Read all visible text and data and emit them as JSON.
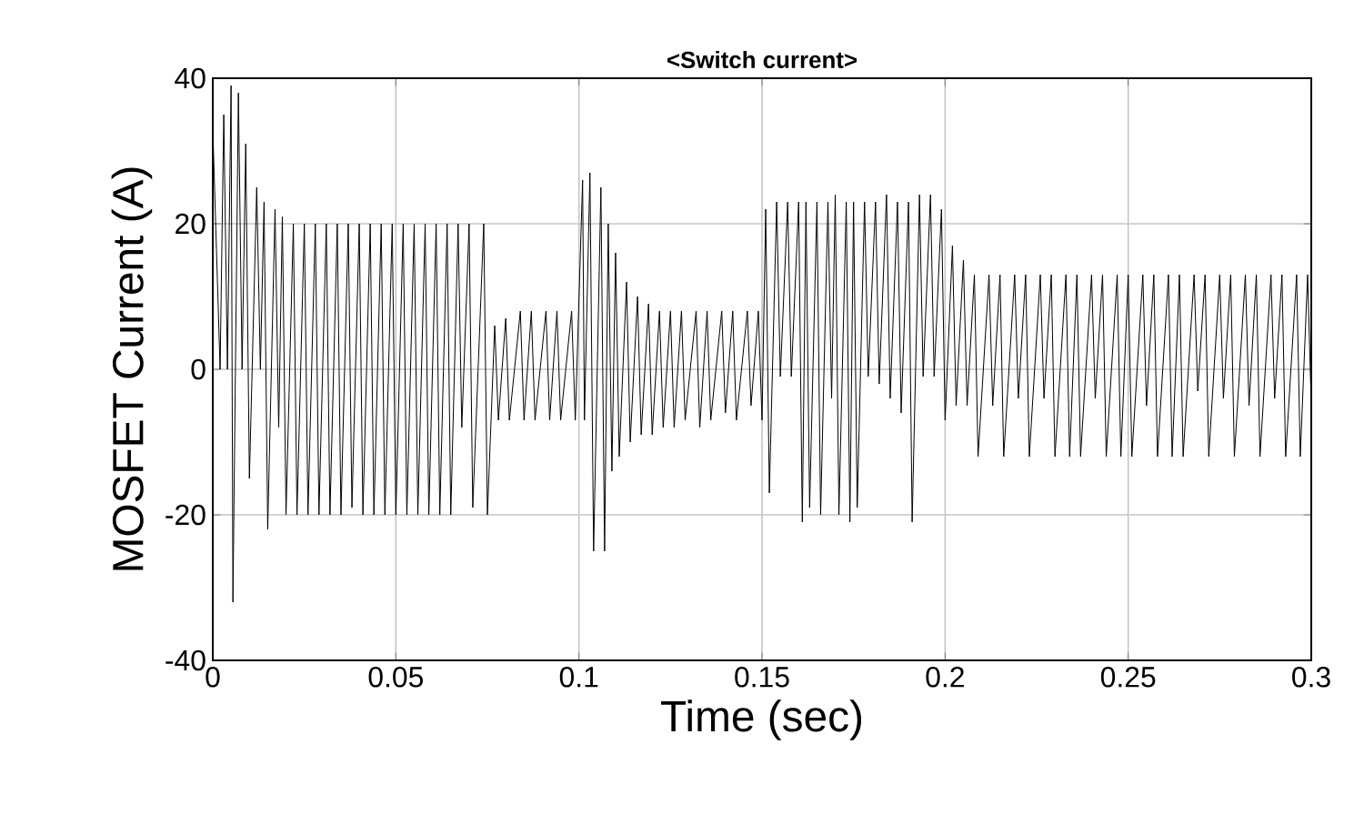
{
  "chart_data": {
    "type": "line",
    "title": "<Switch current>",
    "xlabel": "Time (sec)",
    "ylabel": "MOSFET Current (A)",
    "xlim": [
      0,
      0.3
    ],
    "ylim": [
      -40,
      40
    ],
    "xticks": [
      0,
      0.05,
      0.1,
      0.15,
      0.2,
      0.25,
      0.3
    ],
    "yticks": [
      -40,
      -20,
      0,
      20,
      40
    ],
    "grid": true,
    "series": [
      {
        "color": "#000000",
        "x": [
          0.0,
          0.002,
          0.003,
          0.004,
          0.005,
          0.0055,
          0.007,
          0.008,
          0.009,
          0.01,
          0.012,
          0.013,
          0.014,
          0.015,
          0.017,
          0.018,
          0.019,
          0.02,
          0.022,
          0.023,
          0.025,
          0.026,
          0.028,
          0.029,
          0.031,
          0.032,
          0.034,
          0.035,
          0.037,
          0.038,
          0.04,
          0.041,
          0.043,
          0.044,
          0.046,
          0.047,
          0.049,
          0.05,
          0.052,
          0.053,
          0.055,
          0.056,
          0.058,
          0.059,
          0.061,
          0.062,
          0.064,
          0.065,
          0.067,
          0.068,
          0.07,
          0.071,
          0.074,
          0.075,
          0.077,
          0.078,
          0.08,
          0.081,
          0.084,
          0.085,
          0.087,
          0.088,
          0.091,
          0.092,
          0.094,
          0.095,
          0.098,
          0.099,
          0.101,
          0.1015,
          0.103,
          0.104,
          0.106,
          0.107,
          0.108,
          0.109,
          0.11,
          0.111,
          0.113,
          0.114,
          0.116,
          0.117,
          0.119,
          0.12,
          0.122,
          0.123,
          0.125,
          0.126,
          0.128,
          0.129,
          0.132,
          0.133,
          0.135,
          0.136,
          0.139,
          0.14,
          0.142,
          0.143,
          0.146,
          0.147,
          0.149,
          0.15,
          0.151,
          0.152,
          0.154,
          0.155,
          0.157,
          0.158,
          0.16,
          0.161,
          0.162,
          0.163,
          0.165,
          0.166,
          0.168,
          0.169,
          0.17,
          0.171,
          0.173,
          0.174,
          0.175,
          0.176,
          0.178,
          0.179,
          0.181,
          0.182,
          0.184,
          0.185,
          0.187,
          0.188,
          0.19,
          0.191,
          0.193,
          0.194,
          0.196,
          0.197,
          0.199,
          0.2,
          0.202,
          0.203,
          0.205,
          0.206,
          0.208,
          0.209,
          0.212,
          0.213,
          0.215,
          0.216,
          0.219,
          0.22,
          0.222,
          0.223,
          0.226,
          0.227,
          0.229,
          0.23,
          0.233,
          0.234,
          0.236,
          0.237,
          0.24,
          0.241,
          0.243,
          0.244,
          0.247,
          0.248,
          0.25,
          0.251,
          0.254,
          0.255,
          0.257,
          0.258,
          0.261,
          0.262,
          0.264,
          0.265,
          0.268,
          0.269,
          0.271,
          0.272,
          0.275,
          0.276,
          0.278,
          0.279,
          0.282,
          0.283,
          0.285,
          0.286,
          0.289,
          0.29,
          0.292,
          0.293,
          0.296,
          0.297,
          0.299,
          0.3
        ],
        "values": [
          33,
          0,
          35,
          0,
          39,
          -32,
          38,
          0,
          31,
          -15,
          25,
          0,
          23,
          -22,
          22,
          -8,
          21,
          -20,
          20,
          -20,
          20,
          -20,
          20,
          -20,
          20,
          -20,
          20,
          -20,
          20,
          -19,
          20,
          -20,
          20,
          -20,
          20,
          -20,
          20,
          -20,
          20,
          -20,
          20,
          -20,
          20,
          -20,
          20,
          -20,
          20,
          -20,
          20,
          -8,
          20,
          -19,
          20,
          -20,
          6,
          -7,
          7,
          -7,
          8,
          -7,
          8,
          -7,
          8,
          -7,
          8,
          -7,
          8,
          -7,
          26,
          -7,
          27,
          -25,
          25,
          -25,
          20,
          -14,
          16,
          -12,
          12,
          -10,
          10,
          -9,
          9,
          -9,
          8,
          -8,
          8,
          -8,
          8,
          -7,
          8,
          -8,
          8,
          -7,
          8,
          -6,
          8,
          -7,
          8,
          -5,
          8,
          -7,
          22,
          -17,
          23,
          -1,
          23,
          -1,
          23,
          -21,
          23,
          -19,
          23,
          -20,
          23,
          -4,
          24,
          -20,
          23,
          -21,
          23,
          -19,
          23,
          -1,
          23,
          -2,
          24,
          -4,
          23,
          -6,
          23,
          -21,
          24,
          -1,
          24,
          -1,
          22,
          -7,
          17,
          -5,
          15,
          -5,
          13,
          -12,
          13,
          -5,
          13,
          -12,
          13,
          -4,
          13,
          -12,
          13,
          -4,
          13,
          -12,
          13,
          -12,
          13,
          -12,
          13,
          -4,
          13,
          -12,
          13,
          -12,
          13,
          -12,
          13,
          -5,
          13,
          -12,
          13,
          -12,
          13,
          -12,
          13,
          -3,
          13,
          -12,
          13,
          -4,
          13,
          -12,
          13,
          -5,
          13,
          -12,
          13,
          -4,
          13,
          -12,
          13,
          -12,
          13,
          -5
        ]
      }
    ]
  }
}
